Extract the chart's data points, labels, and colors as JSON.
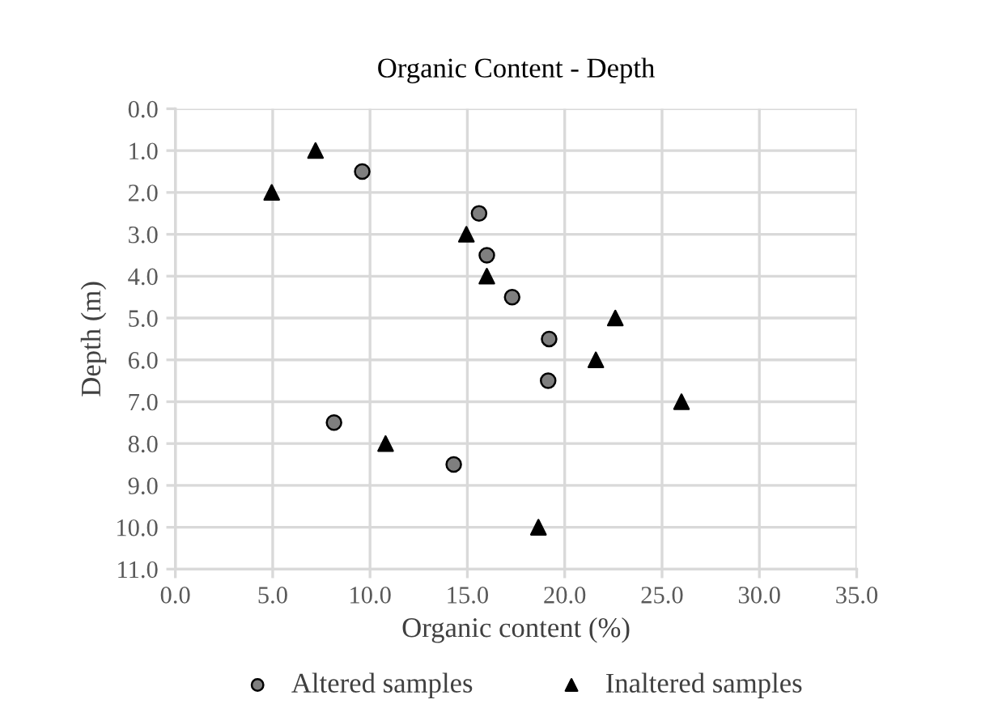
{
  "chart_data": {
    "type": "scatter",
    "title": "Organic Content - Depth",
    "xlabel": "Organic content (%)",
    "ylabel": "Depth (m)",
    "xlim": [
      0,
      35
    ],
    "xticks": [
      {
        "value": 0,
        "label": "0.0"
      },
      {
        "value": 5,
        "label": "5.0"
      },
      {
        "value": 10,
        "label": "10.0"
      },
      {
        "value": 15,
        "label": "15.0"
      },
      {
        "value": 20,
        "label": "20.0"
      },
      {
        "value": 25,
        "label": "25.0"
      },
      {
        "value": 30,
        "label": "30.0"
      },
      {
        "value": 35,
        "label": "35.0"
      }
    ],
    "ylim": [
      11,
      0
    ],
    "yticks": [
      {
        "value": 0,
        "label": "0.0"
      },
      {
        "value": 1,
        "label": "1.0"
      },
      {
        "value": 2,
        "label": "2.0"
      },
      {
        "value": 3,
        "label": "3.0"
      },
      {
        "value": 4,
        "label": "4.0"
      },
      {
        "value": 5,
        "label": "5.0"
      },
      {
        "value": 6,
        "label": "6.0"
      },
      {
        "value": 7,
        "label": "7.0"
      },
      {
        "value": 8,
        "label": "8.0"
      },
      {
        "value": 9,
        "label": "9.0"
      },
      {
        "value": 10,
        "label": "10.0"
      },
      {
        "value": 11,
        "label": "11.0"
      }
    ],
    "grid": true,
    "legend": "bottom",
    "series": [
      {
        "name": "Altered samples",
        "color": "#7f7f7f",
        "marker": "circle",
        "x": [
          9.6,
          15.6,
          16.0,
          17.3,
          19.2,
          19.15,
          8.15,
          14.3
        ],
        "values": [
          1.5,
          2.5,
          3.5,
          4.5,
          5.5,
          6.5,
          7.5,
          8.5
        ]
      },
      {
        "name": "Inaltered samples",
        "color": "#000000",
        "marker": "triangle",
        "x": [
          7.2,
          4.95,
          14.95,
          16.0,
          22.6,
          21.6,
          26.0,
          10.8,
          18.65
        ],
        "values": [
          1.0,
          2.0,
          3.0,
          4.0,
          5.0,
          6.0,
          7.0,
          8.0,
          10.0
        ]
      }
    ]
  }
}
